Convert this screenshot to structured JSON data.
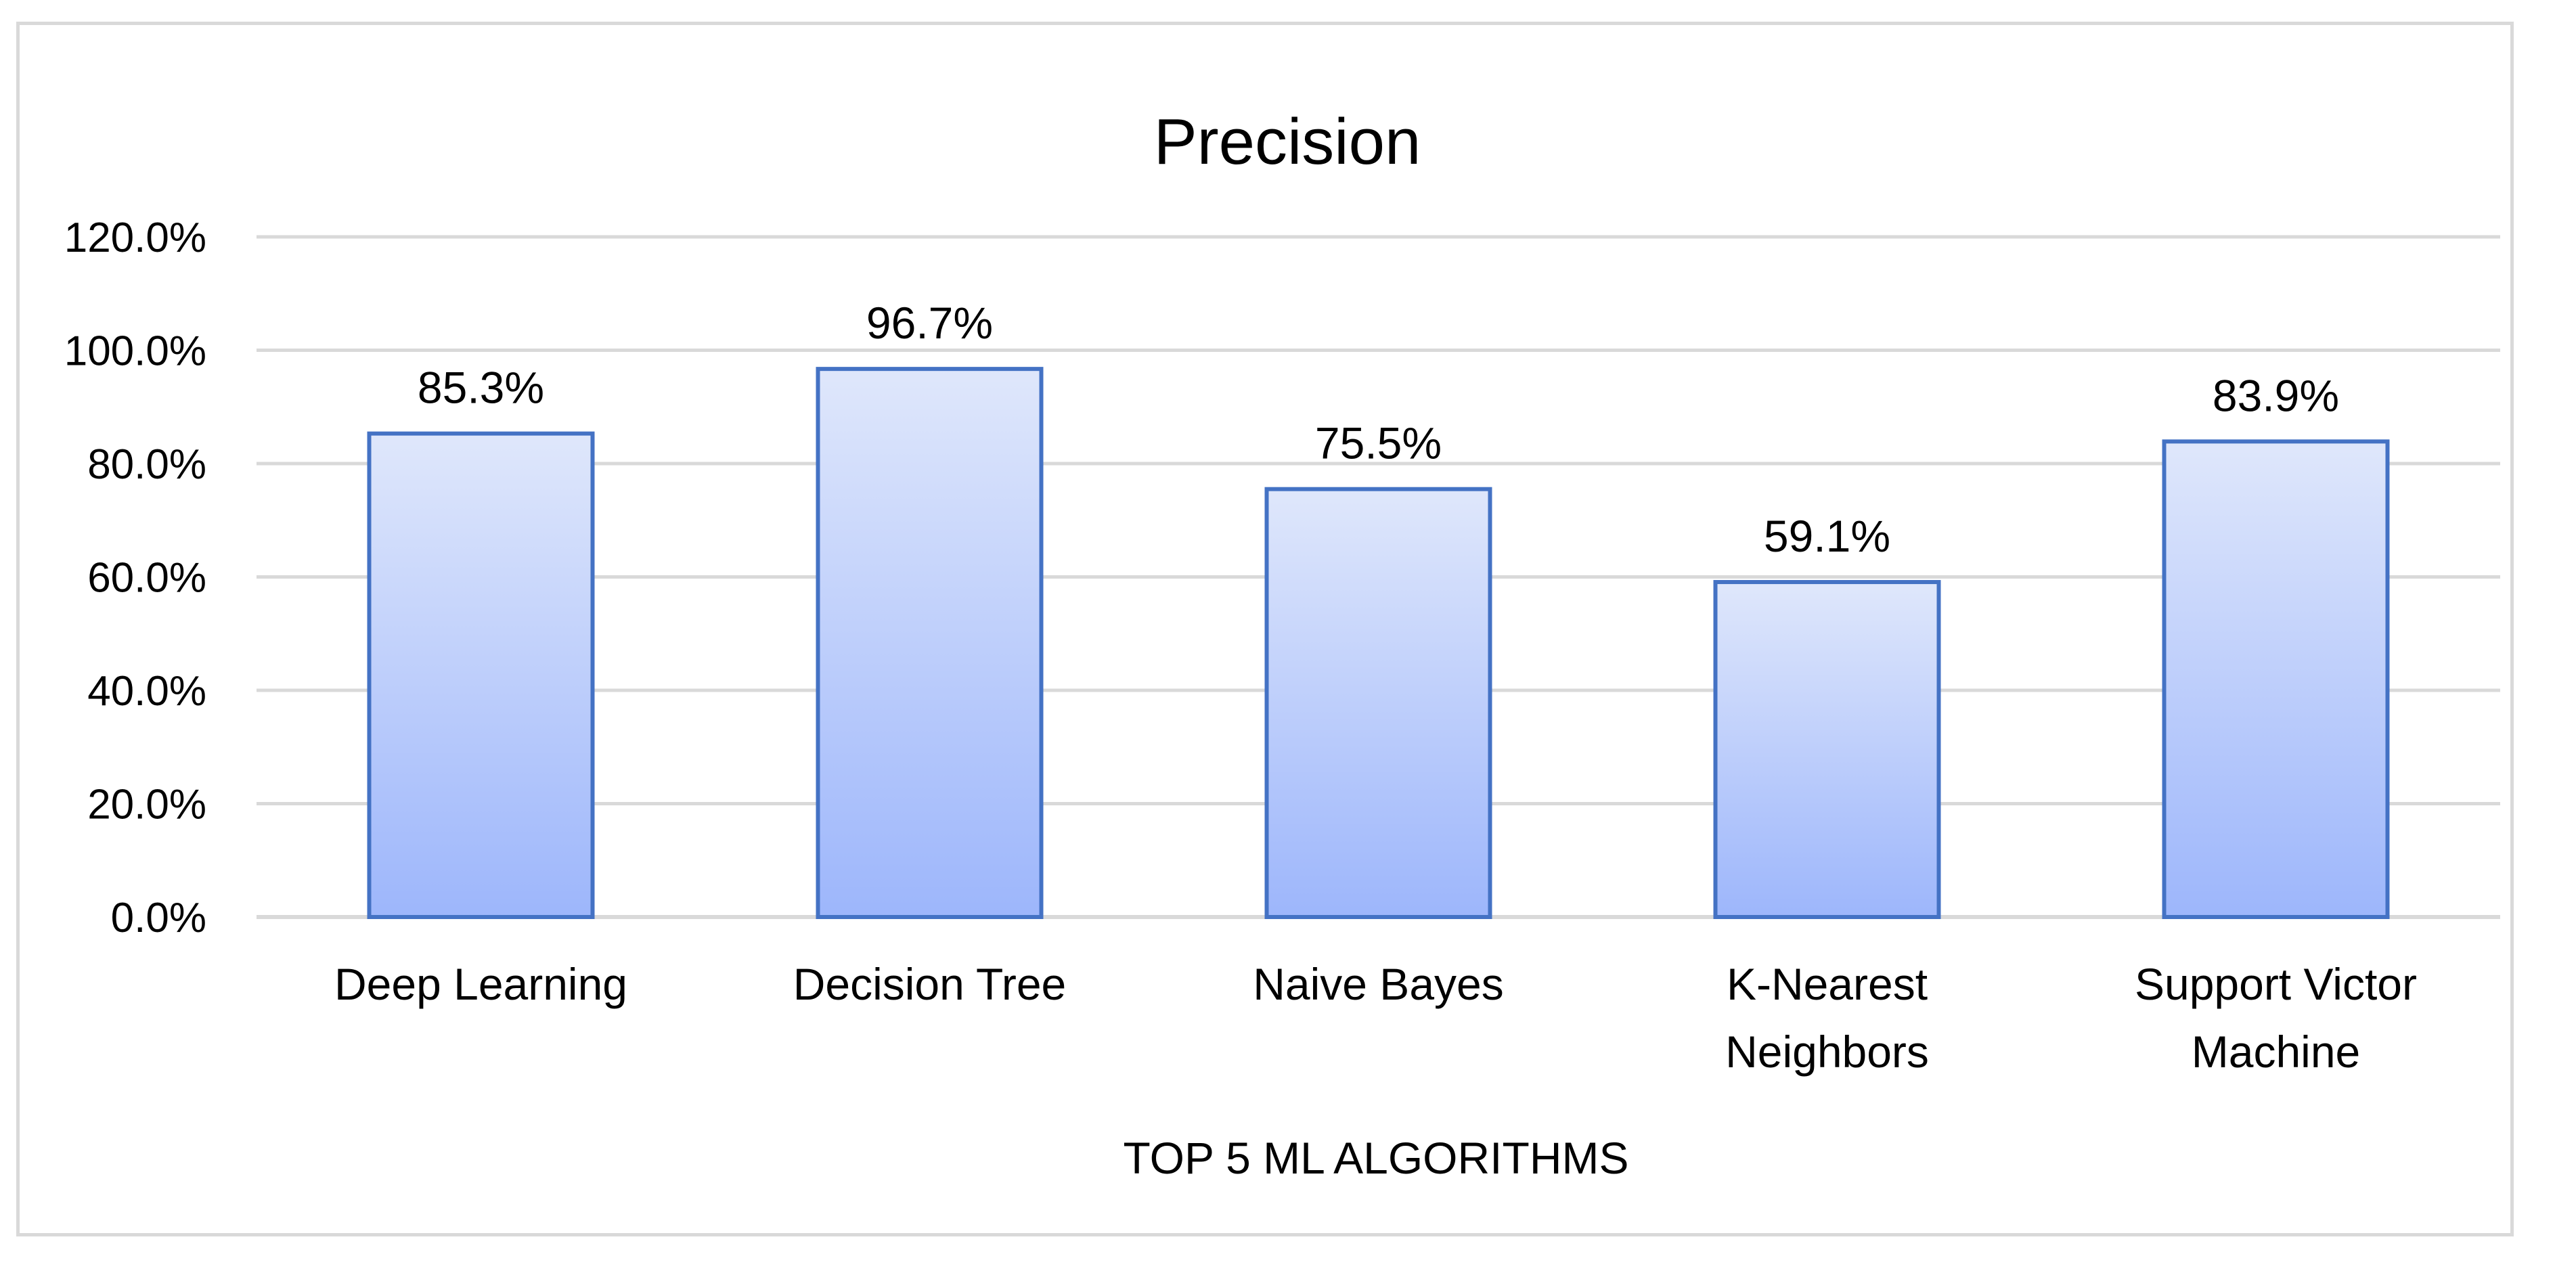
{
  "chart_data": {
    "type": "bar",
    "title": "Precision",
    "xlabel": "TOP 5 ML ALGORITHMS",
    "ylabel": "",
    "categories": [
      [
        "Deep Learning"
      ],
      [
        "Decision Tree"
      ],
      [
        "Naive Bayes"
      ],
      [
        "K-Nearest",
        "Neighbors"
      ],
      [
        "Support Victor",
        "Machine"
      ]
    ],
    "values": [
      85.3,
      96.7,
      75.5,
      59.1,
      83.9
    ],
    "data_labels": [
      "85.3%",
      "96.7%",
      "75.5%",
      "59.1%",
      "83.9%"
    ],
    "ylim": [
      0,
      120
    ],
    "yticks": [
      0,
      20,
      40,
      60,
      80,
      100,
      120
    ],
    "ytick_labels": [
      "0.0%",
      "20.0%",
      "40.0%",
      "60.0%",
      "80.0%",
      "100.0%",
      "120.0%"
    ],
    "grid": true,
    "legend": "none",
    "colors": {
      "bar_fill_top": "#dfe7fb",
      "bar_fill_bottom": "#9db6fb",
      "bar_stroke": "#4472c4",
      "grid": "#d9d9d9",
      "axis": "#d9d9d9",
      "text": "#000000"
    }
  }
}
